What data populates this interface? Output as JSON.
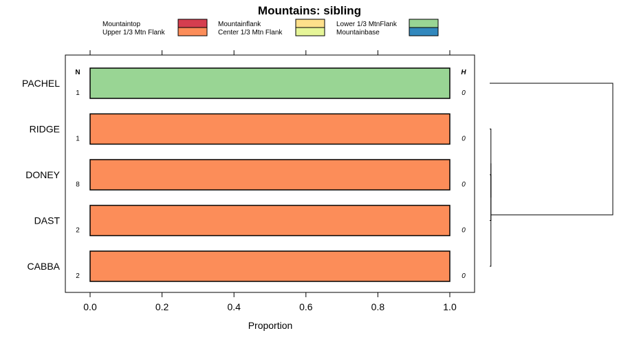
{
  "chart_data": {
    "type": "bar",
    "orientation": "horizontal",
    "stacked": true,
    "title": "Mountains: sibling",
    "xlabel": "Proportion",
    "ylabel": "",
    "xlim": [
      -0.07,
      1.07
    ],
    "xticks": [
      0.0,
      0.2,
      0.4,
      0.6,
      0.8,
      1.0
    ],
    "xtick_labels": [
      "0.0",
      "0.2",
      "0.4",
      "0.6",
      "0.8",
      "1.0"
    ],
    "n_header": "N",
    "h_header": "H",
    "legend_position": "top",
    "legend": [
      {
        "label": "Mountaintop",
        "color": "#d53e4f"
      },
      {
        "label": "Upper 1/3 Mtn Flank",
        "color": "#fc8d59"
      },
      {
        "label": "Mountainflank",
        "color": "#fee08b"
      },
      {
        "label": "Center 1/3 Mtn Flank",
        "color": "#e6f598"
      },
      {
        "label": "Lower 1/3 MtnFlank",
        "color": "#99d594"
      },
      {
        "label": "Mountainbase",
        "color": "#3288bd"
      }
    ],
    "categories": [
      "PACHEL",
      "RIDGE",
      "DONEY",
      "DAST",
      "CABBA"
    ],
    "n": [
      "1",
      "1",
      "8",
      "2",
      "2"
    ],
    "h": [
      "0",
      "0",
      "0",
      "0",
      "0"
    ],
    "series": [
      {
        "name": "Mountaintop",
        "values": [
          0,
          0,
          0,
          0,
          0
        ]
      },
      {
        "name": "Upper 1/3 Mtn Flank",
        "values": [
          0,
          1,
          1,
          1,
          1
        ]
      },
      {
        "name": "Mountainflank",
        "values": [
          0,
          0,
          0,
          0,
          0
        ]
      },
      {
        "name": "Center 1/3 Mtn Flank",
        "values": [
          0,
          0,
          0,
          0,
          0
        ]
      },
      {
        "name": "Lower 1/3 MtnFlank",
        "values": [
          1,
          0,
          0,
          0,
          0
        ]
      },
      {
        "name": "Mountainbase",
        "values": [
          0,
          0,
          0,
          0,
          0
        ]
      }
    ],
    "dendrogram": {
      "leaves": [
        "PACHEL",
        "RIDGE",
        "DONEY",
        "DAST",
        "CABBA"
      ],
      "merges": [
        {
          "left": "DONEY",
          "right": "DAST",
          "height": 0.01
        },
        {
          "left": "RIDGE",
          "right": "DONEY+DAST",
          "height": 0.01
        },
        {
          "left": "RIDGE+DONEY+DAST",
          "right": "CABBA",
          "height": 0.01
        },
        {
          "left": "PACHEL",
          "right": "RIDGE+DONEY+DAST+CABBA",
          "height": 1.0
        }
      ]
    }
  }
}
